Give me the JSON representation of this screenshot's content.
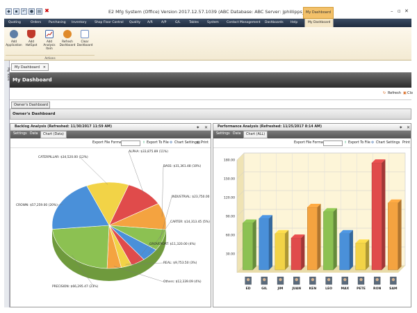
{
  "window": {
    "title": "E2 Mfg System (Office) Version 2017.12.57.1039 (ABC Database: ABC Server: jphillipps_sur3)",
    "context_tab": "My Dashboard"
  },
  "menu": [
    "Quoting",
    "Orders",
    "Purchasing",
    "Inventory",
    "Shop Floor Control",
    "Quality",
    "A/R",
    "A/P",
    "G/L",
    "Tables",
    "System",
    "Contact Management",
    "Dashboards",
    "Help",
    "My Dashboard"
  ],
  "ribbon": {
    "buttons": [
      {
        "label": "Add Application",
        "color": "#5f7fa6"
      },
      {
        "label": "Add HotSpot",
        "color": "#c0392b"
      },
      {
        "label": "Add Analysis Item",
        "color": "#3c64a8"
      },
      {
        "label": "Refresh Dashboard",
        "color": "#e08a2a"
      },
      {
        "label": "Clear Dashboard",
        "color": "#6b8cc4"
      }
    ],
    "group_label": "Actions"
  },
  "sidebar_label": "My Tools",
  "doc_tab": "My Dashboard",
  "dock_title": "My Dashboard",
  "toolbar": {
    "refresh": "Refresh",
    "close": "Clo"
  },
  "owner_tab": "Owner's Dashboard",
  "owner_bar": "Owner's Dashboard",
  "left_panel": {
    "header": "Backlog Analysis (Refreshed: 11/30/2017 11:59 AM)",
    "tabs": [
      "Settings",
      "Data",
      "Chart (Data)"
    ],
    "export_label": "Export File Format:",
    "export_btn": "Export To File",
    "chart_settings": "Chart Settings",
    "print": "Print"
  },
  "right_panel": {
    "header": "Performance Analysis (Refreshed: 11/25/2017 8:14 AM)",
    "tabs": [
      "Settings",
      "Data",
      "Chart (ALL)"
    ],
    "export_label": "Export File Format:",
    "export_btn": "Export To File",
    "chart_settings": "Chart Settings",
    "print": "Print"
  },
  "chart_data": [
    {
      "type": "pie",
      "title": "",
      "slices": [
        {
          "label": "ALPHA: $33,875.89 (11%)",
          "value": 11,
          "color": "#e04b4b"
        },
        {
          "label": "BASS: $31,361.48 (10%)",
          "value": 10,
          "color": "#f4a340"
        },
        {
          "label": "INDUSTRIAL: $23,750.00 (8%)",
          "value": 8,
          "color": "#8cc152"
        },
        {
          "label": "CARTER: $14,313.45 (5%)",
          "value": 5,
          "color": "#4a90d9"
        },
        {
          "label": "GROVEPORT: $11,320.00 (4%)",
          "value": 4,
          "color": "#e04b4b"
        },
        {
          "label": "REAL: $9,753.50 (3%)",
          "value": 3,
          "color": "#f2d347"
        },
        {
          "label": "Others: $12,339.09 (4%)",
          "value": 4,
          "color": "#f4a340"
        },
        {
          "label": "PRECISION: $66,295.47 (23%)",
          "value": 23,
          "color": "#8cc152"
        },
        {
          "label": "CROWN: $57,259.00 (20%)",
          "value": 20,
          "color": "#4a90d9"
        },
        {
          "label": "CATERPILLAR: $34,520.00 (12%)",
          "value": 12,
          "color": "#f2d347"
        }
      ]
    },
    {
      "type": "bar",
      "title": "",
      "categories": [
        "ED",
        "GIL",
        "JIM",
        "JUAN",
        "KEN",
        "LEO",
        "MAX",
        "PETE",
        "RON",
        "SAM"
      ],
      "values": [
        75,
        82,
        58,
        51,
        100,
        93,
        58,
        43,
        171,
        107
      ],
      "colors": [
        "#8cc152",
        "#4a90d9",
        "#f2d347",
        "#e04b4b",
        "#f4a340",
        "#8cc152",
        "#4a90d9",
        "#f2d347",
        "#e04b4b",
        "#f4a340"
      ],
      "ylim": [
        0,
        180
      ],
      "yticks": [
        "180.00",
        "150.00",
        "120.00",
        "90.00",
        "60.00",
        "30.00"
      ]
    }
  ]
}
